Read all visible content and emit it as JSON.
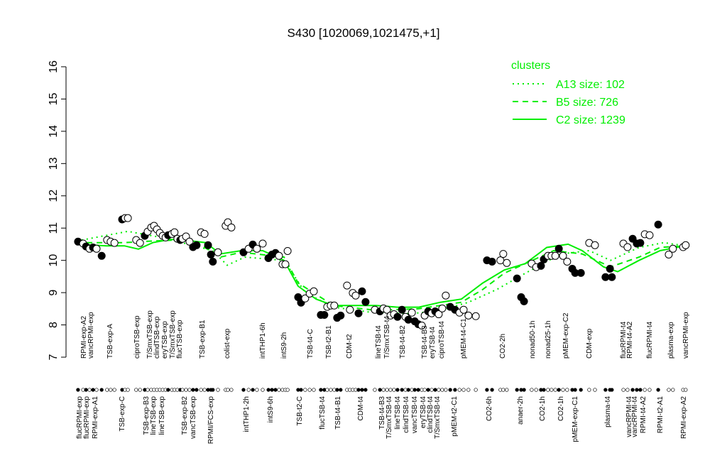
{
  "chart_data": {
    "type": "scatter",
    "title": "S430 [1020069,1021475,+1]",
    "xlim": [
      0,
      195
    ],
    "ylim": [
      7,
      16
    ],
    "yticks": [
      7,
      8,
      9,
      10,
      11,
      12,
      13,
      14,
      15,
      16
    ],
    "point_color": "#000000",
    "points": {
      "x": [
        2.2,
        3.8,
        4.7,
        5.8,
        6.9,
        8.0,
        9.6,
        11.3,
        12.4,
        13.6,
        16.0,
        16.9,
        17.8,
        20.4,
        21.6,
        23.1,
        24.0,
        25.1,
        26.0,
        26.9,
        27.8,
        28.7,
        29.6,
        30.4,
        31.6,
        32.4,
        33.3,
        34.2,
        34.9,
        36.0,
        37.1,
        38.2,
        39.3,
        40.7,
        41.8,
        42.9,
        43.8,
        44.4,
        46.0,
        48.4,
        49.1,
        50.2,
        54.0,
        55.6,
        56.9,
        58.2,
        60.0,
        61.8,
        62.9,
        64.0,
        65.1,
        66.2,
        67.1,
        67.8,
        71.1,
        72.0,
        73.3,
        74.7,
        76.0,
        78.2,
        79.3,
        80.2,
        81.3,
        82.4,
        83.3,
        84.4,
        86.4,
        87.3,
        88.2,
        89.1,
        90.0,
        91.1,
        92.2,
        95.1,
        96.7,
        97.8,
        98.9,
        100.0,
        101.1,
        102.2,
        103.6,
        104.7,
        105.6,
        106.7,
        107.6,
        108.7,
        109.8,
        110.7,
        111.8,
        112.9,
        114.0,
        115.1,
        116.2,
        117.3,
        118.7,
        120.2,
        121.6,
        122.9,
        124.4,
        126.7,
        130.2,
        131.8,
        134.4,
        135.3,
        136.4,
        139.6,
        140.9,
        141.8,
        144.2,
        145.6,
        147.1,
        148.0,
        149.3,
        150.4,
        151.6,
        152.7,
        154.0,
        155.3,
        156.9,
        157.8,
        159.6,
        162.2,
        164.0,
        167.3,
        168.7,
        169.3,
        172.9,
        174.2,
        175.8,
        177.1,
        178.2,
        179.6,
        181.1,
        183.8,
        187.1,
        188.4,
        191.6,
        192.4
      ],
      "y": [
        10.58,
        10.52,
        10.43,
        10.36,
        10.4,
        10.36,
        10.14,
        10.63,
        10.58,
        10.54,
        11.27,
        11.31,
        11.31,
        10.63,
        10.54,
        10.76,
        10.89,
        11.02,
        11.07,
        10.96,
        10.85,
        10.76,
        10.71,
        10.78,
        10.82,
        10.87,
        10.67,
        10.63,
        10.67,
        10.74,
        10.58,
        10.41,
        10.47,
        10.87,
        10.82,
        10.47,
        10.18,
        9.96,
        10.25,
        11.07,
        11.18,
        11.02,
        10.25,
        10.36,
        10.49,
        10.36,
        10.52,
        10.07,
        10.18,
        10.23,
        10.14,
        9.88,
        9.88,
        10.29,
        8.86,
        8.69,
        8.82,
        8.97,
        9.04,
        8.31,
        8.31,
        8.56,
        8.6,
        8.6,
        8.22,
        8.29,
        9.22,
        8.47,
        8.99,
        8.91,
        8.36,
        9.04,
        8.71,
        8.47,
        8.42,
        8.51,
        8.47,
        8.29,
        8.33,
        8.25,
        8.47,
        8.25,
        8.16,
        8.38,
        8.11,
        8.02,
        7.98,
        8.29,
        8.42,
        8.36,
        8.42,
        8.33,
        8.51,
        8.91,
        8.56,
        8.47,
        8.38,
        8.47,
        8.29,
        8.27,
        10.0,
        9.96,
        10.0,
        10.2,
        9.92,
        9.44,
        8.86,
        8.73,
        9.9,
        9.79,
        9.83,
        10.03,
        10.14,
        10.14,
        10.14,
        10.36,
        10.14,
        9.96,
        9.74,
        9.61,
        9.61,
        10.54,
        10.47,
        9.48,
        9.74,
        9.48,
        10.52,
        10.41,
        10.67,
        10.52,
        10.54,
        10.81,
        10.78,
        11.11,
        10.18,
        10.36,
        10.41,
        10.47
      ],
      "filled": [
        true,
        false,
        true,
        false,
        true,
        false,
        true,
        false,
        false,
        false,
        true,
        false,
        false,
        false,
        false,
        true,
        false,
        false,
        false,
        false,
        false,
        false,
        false,
        true,
        false,
        false,
        false,
        true,
        false,
        false,
        false,
        true,
        true,
        false,
        false,
        true,
        true,
        true,
        false,
        false,
        false,
        false,
        true,
        false,
        true,
        false,
        false,
        true,
        true,
        true,
        false,
        false,
        false,
        false,
        true,
        true,
        false,
        false,
        false,
        true,
        true,
        false,
        false,
        false,
        true,
        true,
        false,
        false,
        false,
        false,
        true,
        true,
        true,
        false,
        true,
        false,
        false,
        false,
        false,
        true,
        true,
        false,
        true,
        false,
        true,
        true,
        false,
        false,
        true,
        false,
        true,
        false,
        false,
        false,
        true,
        true,
        false,
        false,
        false,
        false,
        true,
        true,
        false,
        false,
        false,
        true,
        true,
        true,
        false,
        false,
        true,
        true,
        false,
        false,
        false,
        true,
        false,
        false,
        true,
        true,
        true,
        false,
        false,
        true,
        true,
        true,
        false,
        false,
        true,
        true,
        true,
        false,
        false,
        true,
        false,
        false,
        false,
        false
      ]
    },
    "legend_title": "clusters",
    "series": [
      {
        "name": "A13 size: 102",
        "color": "#00ee00",
        "dash": "2 5",
        "x": [
          1.8,
          17.8,
          28.9,
          44.4,
          48.9,
          54.4,
          66.7,
          73.3,
          82.2,
          93.3,
          106.7,
          115.6,
          124.4,
          133.3,
          142.2,
          153.3,
          162.2,
          168.9,
          177.8,
          185.6,
          192.2
        ],
        "values": [
          10.6,
          10.9,
          10.7,
          10.3,
          9.85,
          10.1,
          10.0,
          9.0,
          8.55,
          8.4,
          8.35,
          8.45,
          8.7,
          9.1,
          9.6,
          10.2,
          10.3,
          10.0,
          10.4,
          10.55,
          10.45
        ]
      },
      {
        "name": "B5 size: 726",
        "color": "#00ee00",
        "dash": "8 6",
        "x": [
          1.8,
          16.7,
          25.6,
          37.8,
          46.7,
          53.3,
          66.7,
          71.1,
          82.2,
          95.6,
          108.9,
          122.2,
          128.9,
          135.6,
          142.2,
          151.1,
          160.0,
          168.9,
          177.8,
          184.4,
          192.2
        ],
        "values": [
          10.55,
          10.55,
          10.6,
          10.65,
          10.1,
          10.25,
          10.1,
          9.3,
          8.6,
          8.45,
          8.5,
          8.7,
          9.1,
          9.6,
          9.9,
          10.3,
          10.2,
          9.8,
          10.1,
          10.4,
          10.45
        ]
      },
      {
        "name": "C2 size: 1239",
        "color": "#00ee00",
        "dash": "",
        "x": [
          1.8,
          11.1,
          16.7,
          21.1,
          25.6,
          31.1,
          37.8,
          42.2,
          46.7,
          53.3,
          60.0,
          66.7,
          71.1,
          76.7,
          82.2,
          88.9,
          95.6,
          102.2,
          108.9,
          115.6,
          122.2,
          128.9,
          135.6,
          142.2,
          148.9,
          155.6,
          160.0,
          166.7,
          171.1,
          177.8,
          184.4,
          192.2
        ],
        "values": [
          10.5,
          10.45,
          10.45,
          10.35,
          10.55,
          10.65,
          10.6,
          10.55,
          10.2,
          10.3,
          10.3,
          10.0,
          9.2,
          8.8,
          8.6,
          8.6,
          8.6,
          8.55,
          8.55,
          8.7,
          8.8,
          9.3,
          9.7,
          9.9,
          10.4,
          10.5,
          10.3,
          9.8,
          9.65,
          10.0,
          10.3,
          10.45
        ]
      }
    ],
    "top_labels": {
      "x": [
        4.0,
        6.2,
        12.2,
        20.7,
        24.7,
        26.9,
        29.3,
        31.8,
        34.0,
        41.1,
        48.9,
        60.0,
        66.7,
        74.9,
        80.7,
        87.1,
        96.2,
        98.9,
        103.8,
        110.7,
        113.1,
        116.0,
        122.9,
        135.1,
        144.4,
        149.3,
        154.9,
        162.2,
        172.9,
        174.9,
        181.1,
        187.8,
        192.4
      ],
      "labels": [
        "RPMI-exp-A2",
        "vancRPMI-exp",
        "TSB-exp-A",
        "ciproTSB-exp",
        "T/SmxTSB-exp",
        "clindTSB-exp",
        "eryTSB-exp",
        "T/SmxTSB-exp",
        "flucTSB-exp",
        "TSB-exp-B1",
        "colist-exp",
        "intTHP1-6h",
        "intS9-2h",
        "TSB-t4-C",
        "TSB-t2-B1",
        "CDM-t2",
        "lineTSB-t4",
        "T/SmxTSB-t4",
        "TSB-t4-B2",
        "TSB-t4-B3",
        "eryTSB-t4",
        "ciproTSB-t4",
        "pMEM-t4-C1",
        "CO2-2h",
        "nonad50-1h",
        "nonad25-1h",
        "pMEM-exp-C2",
        "CDM-exp",
        "flucRPMI-t4",
        "RPMI-t4-A2",
        "flucRPMI-t4",
        "plasma-exp",
        "vancRPMI-exp"
      ]
    },
    "bottom_labels": {
      "x": [
        2.7,
        4.9,
        7.6,
        16.0,
        23.6,
        25.8,
        28.4,
        35.6,
        38.2,
        43.8,
        54.9,
        62.4,
        71.6,
        78.7,
        83.6,
        90.7,
        97.3,
        99.6,
        102.2,
        104.9,
        107.6,
        110.2,
        112.4,
        114.7,
        120.0,
        130.9,
        140.7,
        147.6,
        153.3,
        157.8,
        168.0,
        174.7,
        176.4,
        179.1,
        184.4,
        191.8
      ],
      "labels": [
        "flucRPMI-exp",
        "flucRPMI-exp",
        "RPMI-exp-A1",
        "TSB-exp-C",
        "TSB-exp-B3",
        "lineTSB-exp",
        "lineTSB-exp",
        "TSB-exp-B2",
        "vancTSB-exp",
        "RPMI/FCS-exp",
        "intTHP1-2h",
        "intS9-6h",
        "TSB-t2-C",
        "flucTSB-t4",
        "TSB-t4-B1",
        "CDM-t4",
        "TSB-t4-B3",
        "T/SmxTSB-t4",
        "lineTSB-t4",
        "clindTSB-t4",
        "vancTSB-t4",
        "eryTSB-t4",
        "clindTSB-t4",
        "T/SmxTSB-t4",
        "pMEM-t2-C1",
        "CO2-6h",
        "anaer-2h",
        "CO2-1h",
        "CO2-1h",
        "pMEM-exp-C1",
        "plasma-t4",
        "vancRPMI-t4",
        "vancRPMI-t4",
        "RPMI-t4-A2",
        "RPMI-t2-A1",
        "RPMI-exp-A2"
      ]
    }
  }
}
